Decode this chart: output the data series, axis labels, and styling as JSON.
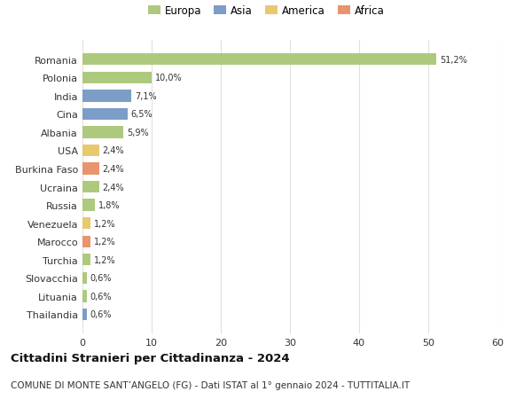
{
  "categories": [
    "Romania",
    "Polonia",
    "India",
    "Cina",
    "Albania",
    "USA",
    "Burkina Faso",
    "Ucraina",
    "Russia",
    "Venezuela",
    "Marocco",
    "Turchia",
    "Slovacchia",
    "Lituania",
    "Thailandia"
  ],
  "values": [
    51.2,
    10.0,
    7.1,
    6.5,
    5.9,
    2.4,
    2.4,
    2.4,
    1.8,
    1.2,
    1.2,
    1.2,
    0.6,
    0.6,
    0.6
  ],
  "labels": [
    "51,2%",
    "10,0%",
    "7,1%",
    "6,5%",
    "5,9%",
    "2,4%",
    "2,4%",
    "2,4%",
    "1,8%",
    "1,2%",
    "1,2%",
    "1,2%",
    "0,6%",
    "0,6%",
    "0,6%"
  ],
  "colors": [
    "#adc97e",
    "#adc97e",
    "#7b9dc7",
    "#7b9dc7",
    "#adc97e",
    "#e8c96e",
    "#e8946e",
    "#adc97e",
    "#adc97e",
    "#e8c96e",
    "#e8946e",
    "#adc97e",
    "#adc97e",
    "#adc97e",
    "#7b9dc7"
  ],
  "legend": {
    "Europa": "#adc97e",
    "Asia": "#7b9dc7",
    "America": "#e8c96e",
    "Africa": "#e8946e"
  },
  "xlim": [
    0,
    60
  ],
  "xticks": [
    0,
    10,
    20,
    30,
    40,
    50,
    60
  ],
  "title": "Cittadini Stranieri per Cittadinanza - 2024",
  "subtitle": "COMUNE DI MONTE SANT’ANGELO (FG) - Dati ISTAT al 1° gennaio 2024 - TUTTITALIA.IT",
  "background_color": "#ffffff",
  "grid_color": "#e0e0e0",
  "bar_height": 0.65
}
